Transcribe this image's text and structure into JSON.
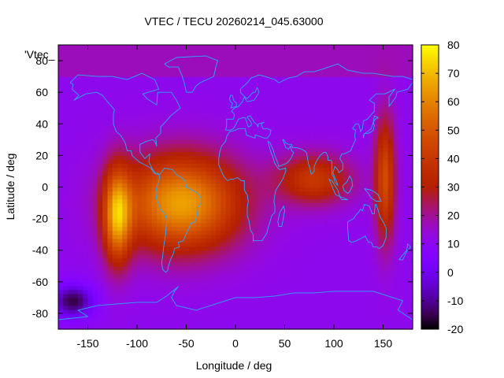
{
  "chart_data": {
    "type": "heatmap",
    "title": "VTEC / TECU 20260214_045.63000",
    "xlabel": "Longitude / deg",
    "ylabel": "Latitude / deg",
    "legend_label": "'Vtec_",
    "xlim": [
      -180,
      180
    ],
    "ylim": [
      -90,
      90
    ],
    "xticks": [
      -150,
      -100,
      -50,
      0,
      50,
      100,
      150
    ],
    "yticks": [
      -80,
      -60,
      -40,
      -20,
      0,
      20,
      40,
      60,
      80
    ],
    "colorbar": {
      "range": [
        -20,
        80
      ],
      "ticks": [
        -20,
        -10,
        0,
        10,
        20,
        30,
        40,
        50,
        60,
        70,
        80
      ],
      "palette": "gnuplot pm3d black-blue-red-yellow"
    },
    "grid_resolution_deg": {
      "longitude": 5,
      "latitude": 2.5
    },
    "field_features": [
      {
        "feature": "main equatorial anomaly",
        "center_lon": -55,
        "center_lat": -10,
        "peak_vtec": 66
      },
      {
        "feature": "secondary crest",
        "center_lon": -120,
        "center_lat": -18,
        "peak_vtec": 60
      },
      {
        "feature": "eastern enhancement",
        "center_lon": 80,
        "center_lat": 5,
        "peak_vtec": 40
      },
      {
        "feature": "dateline crest",
        "center_lon": 152,
        "center_lat": 5,
        "peak_vtec": 46
      },
      {
        "feature": "south pacific depletion",
        "center_lon": -165,
        "center_lat": -72,
        "min_vtec": -16
      },
      {
        "feature": "background",
        "value_vtec": 11
      }
    ],
    "overlay": "coastlines"
  }
}
